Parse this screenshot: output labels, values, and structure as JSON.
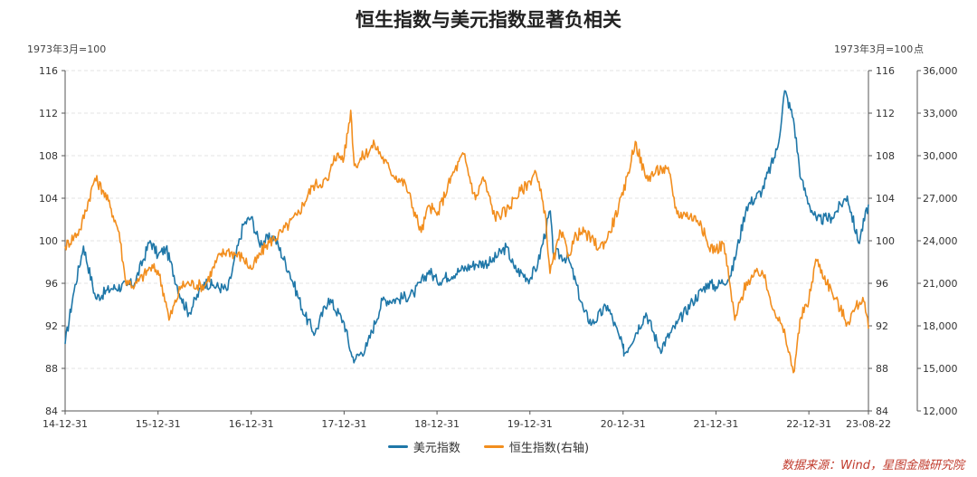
{
  "chart_data": {
    "type": "line",
    "title": "恒生指数与美元指数显著负相关",
    "left_unit": "1973年3月=100",
    "right_unit_1": "1973年3月=100",
    "right_unit_2": "点",
    "x_ticks": [
      "14-12-31",
      "15-12-31",
      "16-12-31",
      "17-12-31",
      "18-12-31",
      "19-12-31",
      "20-12-31",
      "21-12-31",
      "22-12-31",
      "23-08-22"
    ],
    "x_range": [
      "2014-12-31",
      "2023-08-22"
    ],
    "ylim_left": [
      84,
      116
    ],
    "yticks_left": [
      84,
      88,
      92,
      96,
      100,
      104,
      108,
      112,
      116
    ],
    "ylim_right": [
      12000,
      36000
    ],
    "yticks_right": [
      "12,000",
      "15,000",
      "18,000",
      "21,000",
      "24,000",
      "27,000",
      "30,000",
      "33,000",
      "36,000"
    ],
    "grid": true,
    "legend_position": "bottom",
    "series": [
      {
        "name": "美元指数",
        "axis": "left",
        "color": "#1f77a8",
        "x": [
          "2014-12-31",
          "2015-01-31",
          "2015-03-13",
          "2015-04-30",
          "2015-06-30",
          "2015-08-31",
          "2015-09-30",
          "2015-11-30",
          "2015-12-31",
          "2016-01-31",
          "2016-03-31",
          "2016-04-30",
          "2016-06-30",
          "2016-07-31",
          "2016-09-30",
          "2016-11-30",
          "2016-12-31",
          "2017-01-31",
          "2017-03-31",
          "2017-05-31",
          "2017-07-31",
          "2017-09-08",
          "2017-10-31",
          "2017-12-31",
          "2018-01-31",
          "2018-02-15",
          "2018-03-31",
          "2018-05-31",
          "2018-07-31",
          "2018-09-30",
          "2018-11-30",
          "2018-12-31",
          "2019-03-31",
          "2019-05-31",
          "2019-07-31",
          "2019-09-30",
          "2019-10-31",
          "2019-12-31",
          "2020-01-31",
          "2020-03-20",
          "2020-03-31",
          "2020-05-31",
          "2020-07-31",
          "2020-08-31",
          "2020-10-31",
          "2020-12-31",
          "2021-01-06",
          "2021-03-31",
          "2021-05-25",
          "2021-07-31",
          "2021-09-30",
          "2021-11-30",
          "2021-12-31",
          "2022-02-28",
          "2022-04-30",
          "2022-06-30",
          "2022-08-31",
          "2022-09-27",
          "2022-10-31",
          "2022-11-30",
          "2022-12-31",
          "2023-01-31",
          "2023-03-31",
          "2023-05-31",
          "2023-07-14",
          "2023-08-22"
        ],
        "values": [
          90.3,
          94.8,
          99.5,
          94.6,
          95.5,
          95.8,
          96.0,
          100.0,
          98.6,
          99.3,
          94.6,
          93.2,
          96.1,
          95.8,
          95.4,
          101.5,
          102.2,
          99.8,
          100.4,
          97.0,
          92.9,
          91.3,
          94.6,
          92.3,
          89.1,
          88.9,
          90.1,
          94.4,
          94.5,
          95.0,
          97.2,
          96.2,
          97.2,
          97.8,
          98.0,
          99.4,
          97.4,
          96.4,
          97.8,
          102.8,
          98.9,
          98.3,
          93.3,
          92.2,
          93.9,
          89.9,
          89.4,
          93.2,
          89.8,
          92.2,
          94.3,
          96.0,
          95.7,
          96.7,
          103.2,
          104.7,
          108.8,
          114.1,
          111.5,
          105.8,
          103.5,
          101.9,
          102.2,
          104.2,
          99.8,
          103.4
        ]
      },
      {
        "name": "恒生指数(右轴)",
        "axis": "right",
        "color": "#f28e1e",
        "x": [
          "2014-12-31",
          "2015-02-28",
          "2015-04-27",
          "2015-05-31",
          "2015-06-30",
          "2015-07-31",
          "2015-08-24",
          "2015-09-30",
          "2015-11-30",
          "2015-12-31",
          "2016-01-31",
          "2016-02-12",
          "2016-03-31",
          "2016-04-30",
          "2016-06-30",
          "2016-08-31",
          "2016-09-30",
          "2016-11-30",
          "2016-12-31",
          "2017-02-28",
          "2017-04-30",
          "2017-06-30",
          "2017-08-31",
          "2017-10-31",
          "2017-11-22",
          "2017-12-31",
          "2018-01-26",
          "2018-02-09",
          "2018-04-30",
          "2018-06-30",
          "2018-08-31",
          "2018-10-30",
          "2018-11-30",
          "2018-12-31",
          "2019-02-28",
          "2019-04-15",
          "2019-05-31",
          "2019-06-30",
          "2019-08-15",
          "2019-09-30",
          "2019-10-31",
          "2019-12-31",
          "2020-01-20",
          "2020-02-28",
          "2020-03-19",
          "2020-04-30",
          "2020-05-31",
          "2020-06-30",
          "2020-07-31",
          "2020-09-30",
          "2020-10-31",
          "2020-12-31",
          "2021-02-17",
          "2021-03-31",
          "2021-05-31",
          "2021-06-30",
          "2021-07-31",
          "2021-08-31",
          "2021-10-31",
          "2021-11-30",
          "2021-12-31",
          "2022-01-31",
          "2022-03-15",
          "2022-04-30",
          "2022-06-30",
          "2022-07-31",
          "2022-09-30",
          "2022-10-31",
          "2022-11-30",
          "2022-12-31",
          "2023-01-27",
          "2023-03-31",
          "2023-05-31",
          "2023-06-30",
          "2023-07-31",
          "2023-08-22"
        ],
        "values": [
          23600,
          24800,
          28400,
          27500,
          26250,
          24600,
          21300,
          20800,
          22100,
          21900,
          19700,
          18400,
          20800,
          21000,
          20800,
          23000,
          23300,
          22800,
          22000,
          23700,
          24600,
          25800,
          27900,
          28300,
          30000,
          29900,
          33200,
          29300,
          30800,
          28950,
          27900,
          24600,
          26500,
          25800,
          28600,
          30100,
          26900,
          28500,
          25700,
          26100,
          27000,
          28200,
          28950,
          26100,
          21700,
          24600,
          23000,
          24400,
          24600,
          23500,
          24200,
          27230,
          31000,
          28400,
          29100,
          28800,
          25900,
          25900,
          25400,
          23600,
          23400,
          23800,
          18400,
          21100,
          21900,
          20000,
          17200,
          14700,
          18600,
          19800,
          22700,
          20400,
          18200,
          19200,
          20000,
          17800
        ]
      }
    ]
  },
  "legend": {
    "items": [
      {
        "label": "美元指数",
        "color": "#1f77a8"
      },
      {
        "label": "恒生指数(右轴)",
        "color": "#f28e1e"
      }
    ]
  },
  "source": "数据来源：Wind，星图金融研究院"
}
